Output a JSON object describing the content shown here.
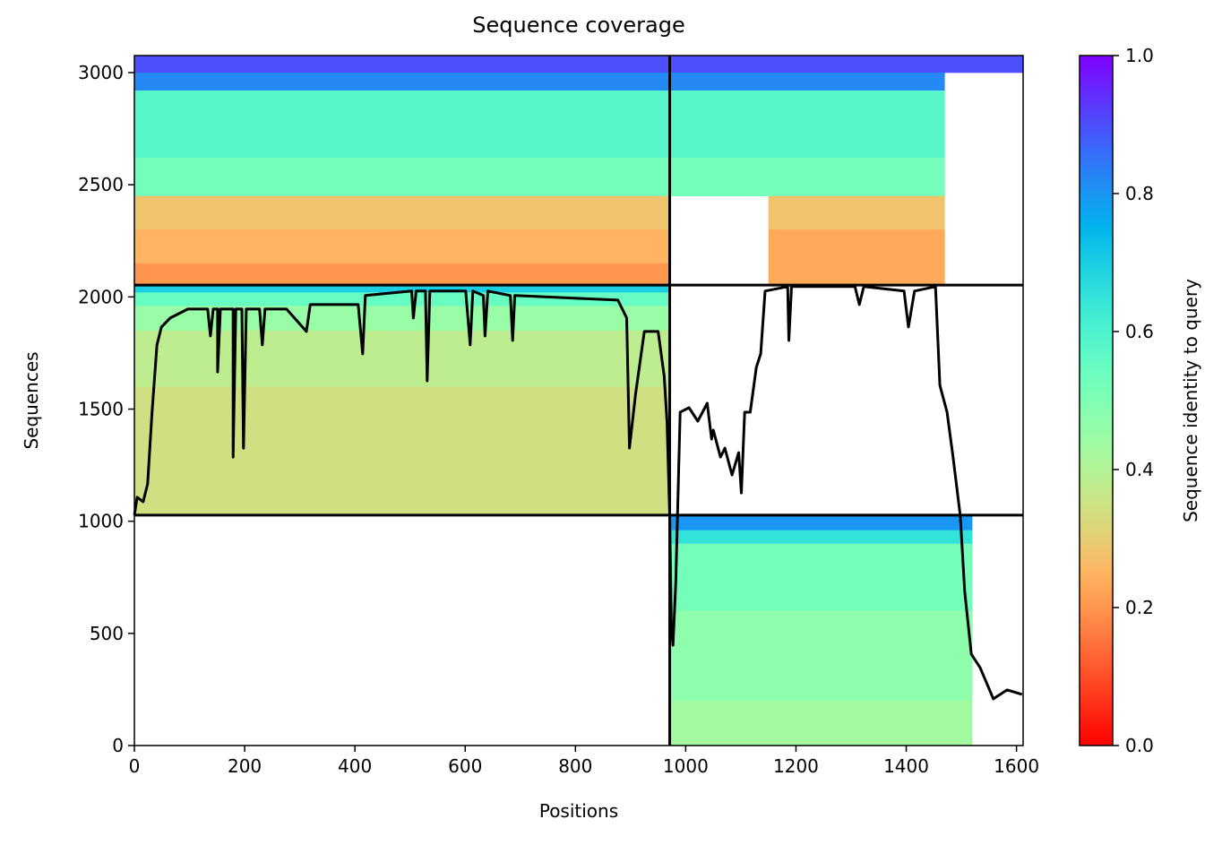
{
  "chart_data": {
    "type": "coverage",
    "title": "Sequence coverage",
    "xlabel": "Positions",
    "ylabel": "Sequences",
    "colorbar_label": "Sequence identity to query",
    "xlim": [
      0,
      1612
    ],
    "ylim": [
      0,
      3076
    ],
    "xticks": [
      0,
      200,
      400,
      600,
      800,
      1000,
      1200,
      1400,
      1600
    ],
    "yticks": [
      0,
      500,
      1000,
      1500,
      2000,
      2500,
      3000
    ],
    "clim": [
      0,
      1
    ],
    "cticks": [
      {
        "value": 0,
        "label": "0.0"
      },
      {
        "value": 0.2,
        "label": "0.2"
      },
      {
        "value": 0.4,
        "label": "0.4"
      },
      {
        "value": 0.6,
        "label": "0.6"
      },
      {
        "value": 0.8,
        "label": "0.8"
      },
      {
        "value": 1,
        "label": "1.0"
      }
    ],
    "colormap": "rainbow_r",
    "heatmap": [
      {
        "x": [
          0,
          971
        ],
        "y": [
          3000,
          3076
        ],
        "identity": 0.9
      },
      {
        "x": [
          0,
          971
        ],
        "y": [
          2920,
          3000
        ],
        "identity": 0.82
      },
      {
        "x": [
          0,
          971
        ],
        "y": [
          2620,
          2920
        ],
        "identity": 0.58
      },
      {
        "x": [
          0,
          971
        ],
        "y": [
          2450,
          2620
        ],
        "identity": 0.52
      },
      {
        "x": [
          0,
          971
        ],
        "y": [
          2300,
          2450
        ],
        "identity": 0.28
      },
      {
        "x": [
          0,
          971
        ],
        "y": [
          2150,
          2300
        ],
        "identity": 0.25
      },
      {
        "x": [
          0,
          971
        ],
        "y": [
          2053,
          2150
        ],
        "identity": 0.2
      },
      {
        "x": [
          0,
          971
        ],
        "y": [
          2020,
          2053
        ],
        "identity": 0.7
      },
      {
        "x": [
          0,
          971
        ],
        "y": [
          1960,
          2020
        ],
        "identity": 0.55
      },
      {
        "x": [
          0,
          971
        ],
        "y": [
          1850,
          1960
        ],
        "identity": 0.45
      },
      {
        "x": [
          0,
          971
        ],
        "y": [
          1600,
          1850
        ],
        "identity": 0.38
      },
      {
        "x": [
          0,
          971
        ],
        "y": [
          1027,
          1600
        ],
        "identity": 0.34
      },
      {
        "x": [
          971,
          1612
        ],
        "y": [
          3000,
          3076
        ],
        "identity": 0.9
      },
      {
        "x": [
          971,
          1470
        ],
        "y": [
          2920,
          3000
        ],
        "identity": 0.82
      },
      {
        "x": [
          971,
          1470
        ],
        "y": [
          2620,
          2920
        ],
        "identity": 0.58
      },
      {
        "x": [
          971,
          1470
        ],
        "y": [
          2450,
          2620
        ],
        "identity": 0.52
      },
      {
        "x": [
          1150,
          1470
        ],
        "y": [
          2300,
          2450
        ],
        "identity": 0.28
      },
      {
        "x": [
          1150,
          1470
        ],
        "y": [
          2053,
          2300
        ],
        "identity": 0.23
      },
      {
        "x": [
          971,
          1520
        ],
        "y": [
          960,
          1027
        ],
        "identity": 0.8
      },
      {
        "x": [
          971,
          1520
        ],
        "y": [
          900,
          960
        ],
        "identity": 0.65
      },
      {
        "x": [
          971,
          1520
        ],
        "y": [
          600,
          900
        ],
        "identity": 0.52
      },
      {
        "x": [
          971,
          1520
        ],
        "y": [
          200,
          600
        ],
        "identity": 0.47
      },
      {
        "x": [
          971,
          1520
        ],
        "y": [
          0,
          200
        ],
        "identity": 0.43
      }
    ],
    "chain_breaks": {
      "x": [
        971
      ],
      "y": [
        1027,
        2053
      ]
    },
    "line_color": "#000000",
    "coverage": {
      "x": [
        0,
        5,
        16,
        24,
        32,
        41,
        49,
        65,
        97,
        133,
        138,
        143,
        151,
        151,
        156,
        179,
        179,
        184,
        195,
        198,
        203,
        227,
        232,
        237,
        276,
        312,
        319,
        406,
        414,
        419,
        503,
        506,
        511,
        528,
        531,
        536,
        601,
        609,
        614,
        633,
        636,
        641,
        682,
        686,
        690,
        877,
        893,
        898,
        909,
        925,
        950,
        961,
        966,
        971,
        974,
        977,
        982,
        990,
        1006,
        1022,
        1039,
        1047,
        1050,
        1063,
        1071,
        1084,
        1096,
        1101,
        1107,
        1117,
        1128,
        1136,
        1144,
        1185,
        1187,
        1192,
        1307,
        1315,
        1323,
        1396,
        1404,
        1415,
        1453,
        1461,
        1474,
        1485,
        1498,
        1506,
        1518,
        1534,
        1558,
        1583,
        1610
      ],
      "values": [
        1027,
        1107,
        1087,
        1167,
        1486,
        1786,
        1866,
        1906,
        1946,
        1946,
        1826,
        1946,
        1946,
        1666,
        1946,
        1946,
        1286,
        1946,
        1946,
        1326,
        1946,
        1946,
        1786,
        1946,
        1946,
        1846,
        1966,
        1966,
        1746,
        2006,
        2026,
        1906,
        2026,
        2026,
        1626,
        2026,
        2026,
        1786,
        2026,
        2006,
        1826,
        2026,
        2006,
        1806,
        2006,
        1986,
        1906,
        1326,
        1566,
        1846,
        1846,
        1646,
        1446,
        1027,
        527,
        447,
        727,
        1486,
        1506,
        1446,
        1526,
        1366,
        1406,
        1286,
        1326,
        1206,
        1306,
        1126,
        1486,
        1486,
        1686,
        1746,
        2026,
        2046,
        1806,
        2046,
        2046,
        1966,
        2046,
        2026,
        1866,
        2026,
        2046,
        1606,
        1486,
        1286,
        1027,
        687,
        407,
        347,
        208,
        248,
        228
      ]
    }
  }
}
